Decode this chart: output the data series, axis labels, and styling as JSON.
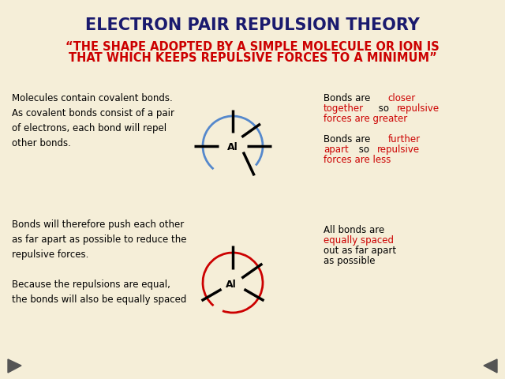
{
  "bg_color": "#f5eed8",
  "title": "ELECTRON PAIR REPULSION THEORY",
  "title_color": "#1a1a6e",
  "title_fontsize": 15,
  "subtitle_line1": "“THE SHAPE ADOPTED BY A SIMPLE MOLECULE OR ION IS",
  "subtitle_line2": "THAT WHICH KEEPS REPULSIVE FORCES TO A MINIMUM”",
  "subtitle_color": "#cc0000",
  "subtitle_fontsize": 10.5,
  "text_color": "#000000",
  "red_color": "#cc0000",
  "blue_color": "#5588cc",
  "body_fontsize": 8.5,
  "top_left_text": "Molecules contain covalent bonds.\nAs covalent bonds consist of a pair\nof electrons, each bond will repel\nother bonds.",
  "bottom_left_text": "Bonds will therefore push each other\nas far apart as possible to reduce the\nrepulsive forces.\n\nBecause the repulsions are equal,\nthe bonds will also be equally spaced",
  "nav_arrow_color": "#555555"
}
